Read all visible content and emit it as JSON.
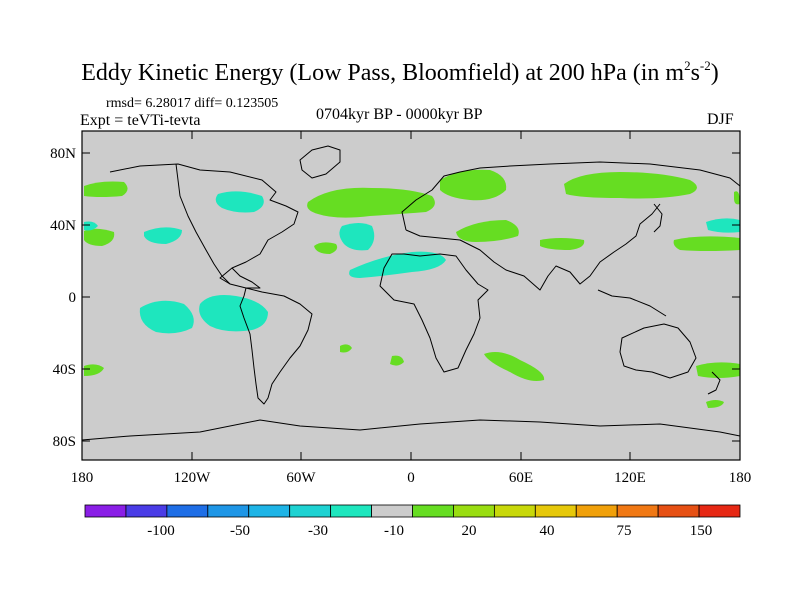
{
  "title": {
    "main": "Eddy Kinetic Energy (Low Pass, Bloomfield) at 200 hPa (in m",
    "sup1": "2",
    "mid": "s",
    "sup2": "-2",
    "close": ")"
  },
  "stats": "rmsd= 6.28017 diff= 0.123505",
  "experiment": "Expt = teVTi-tevta",
  "period": "0704kyr BP - 0000kyr BP",
  "season": "DJF",
  "axes": {
    "lat_labels": [
      "80N",
      "40N",
      "0",
      "40S",
      "80S"
    ],
    "lon_labels": [
      "180",
      "120W",
      "60W",
      "0",
      "60E",
      "120E",
      "180"
    ]
  },
  "colorbar": {
    "labels": [
      "-100",
      "-50",
      "-30",
      "-10",
      "20",
      "40",
      "75",
      "150"
    ],
    "colors": [
      "#8a1ee6",
      "#4a3ce6",
      "#1e6ee6",
      "#1e96e6",
      "#1eb4e6",
      "#1ed2d2",
      "#1ee6be",
      "#cccccc",
      "#66dd22",
      "#99dd11",
      "#c8d80a",
      "#e6c80a",
      "#f0a00a",
      "#f07814",
      "#e65014",
      "#e62814"
    ]
  },
  "colors": {
    "land_background": "#cccccc",
    "positive_anomaly": "#66dd22",
    "negative_anomaly": "#1ee6be"
  }
}
